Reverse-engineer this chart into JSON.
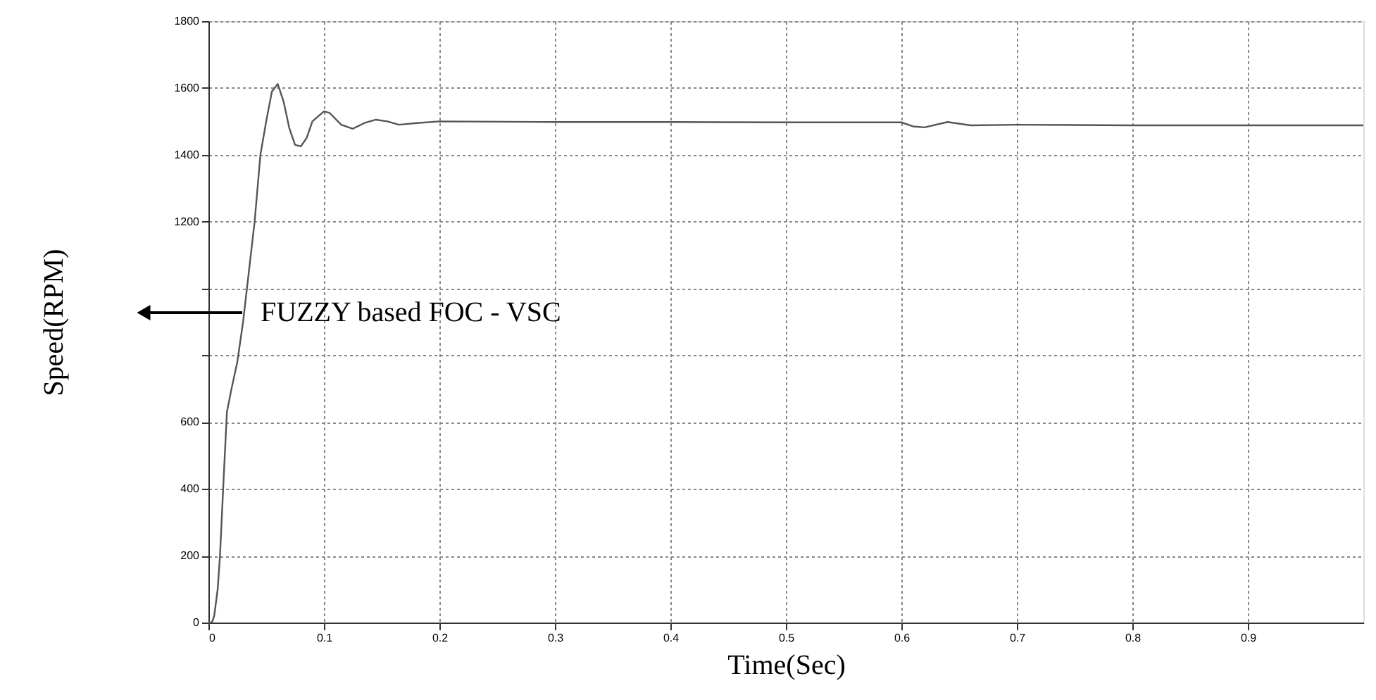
{
  "chart_data": {
    "type": "line",
    "xlabel": "Time(Sec)",
    "ylabel": "Speed(RPM)",
    "annotations": [
      "FUZZY based FOC - VSC"
    ],
    "x": [
      0,
      0.003,
      0.005,
      0.008,
      0.01,
      0.013,
      0.016,
      0.02,
      0.025,
      0.03,
      0.035,
      0.04,
      0.045,
      0.05,
      0.055,
      0.06,
      0.065,
      0.07,
      0.075,
      0.08,
      0.085,
      0.09,
      0.1,
      0.105,
      0.115,
      0.125,
      0.135,
      0.145,
      0.155,
      0.165,
      0.18,
      0.2,
      0.3,
      0.4,
      0.5,
      0.6,
      0.61,
      0.62,
      0.64,
      0.66,
      0.7,
      0.8,
      1.0
    ],
    "series": [
      {
        "color": "#555555",
        "values": [
          0,
          0,
          20,
          100,
          200,
          420,
          630,
          700,
          780,
          900,
          1050,
          1200,
          1400,
          1500,
          1590,
          1612,
          1560,
          1480,
          1430,
          1425,
          1450,
          1500,
          1530,
          1525,
          1490,
          1478,
          1495,
          1505,
          1500,
          1490,
          1495,
          1500,
          1498,
          1498,
          1497,
          1497,
          1485,
          1482,
          1498,
          1488,
          1490,
          1488,
          1488
        ]
      }
    ],
    "xlim": [
      0,
      1
    ],
    "xticks": [
      0,
      0.1,
      0.2,
      0.3,
      0.4,
      0.5,
      0.6,
      0.7,
      0.8,
      0.9
    ],
    "ylim": [
      0,
      1800
    ],
    "yticks": [
      0,
      200,
      400,
      600,
      {
        "value": 800,
        "label": null
      },
      {
        "value": 1000,
        "label": null
      },
      1200,
      1400,
      1600,
      1800
    ],
    "grid": true,
    "marker": "none",
    "line_style": "solid"
  }
}
